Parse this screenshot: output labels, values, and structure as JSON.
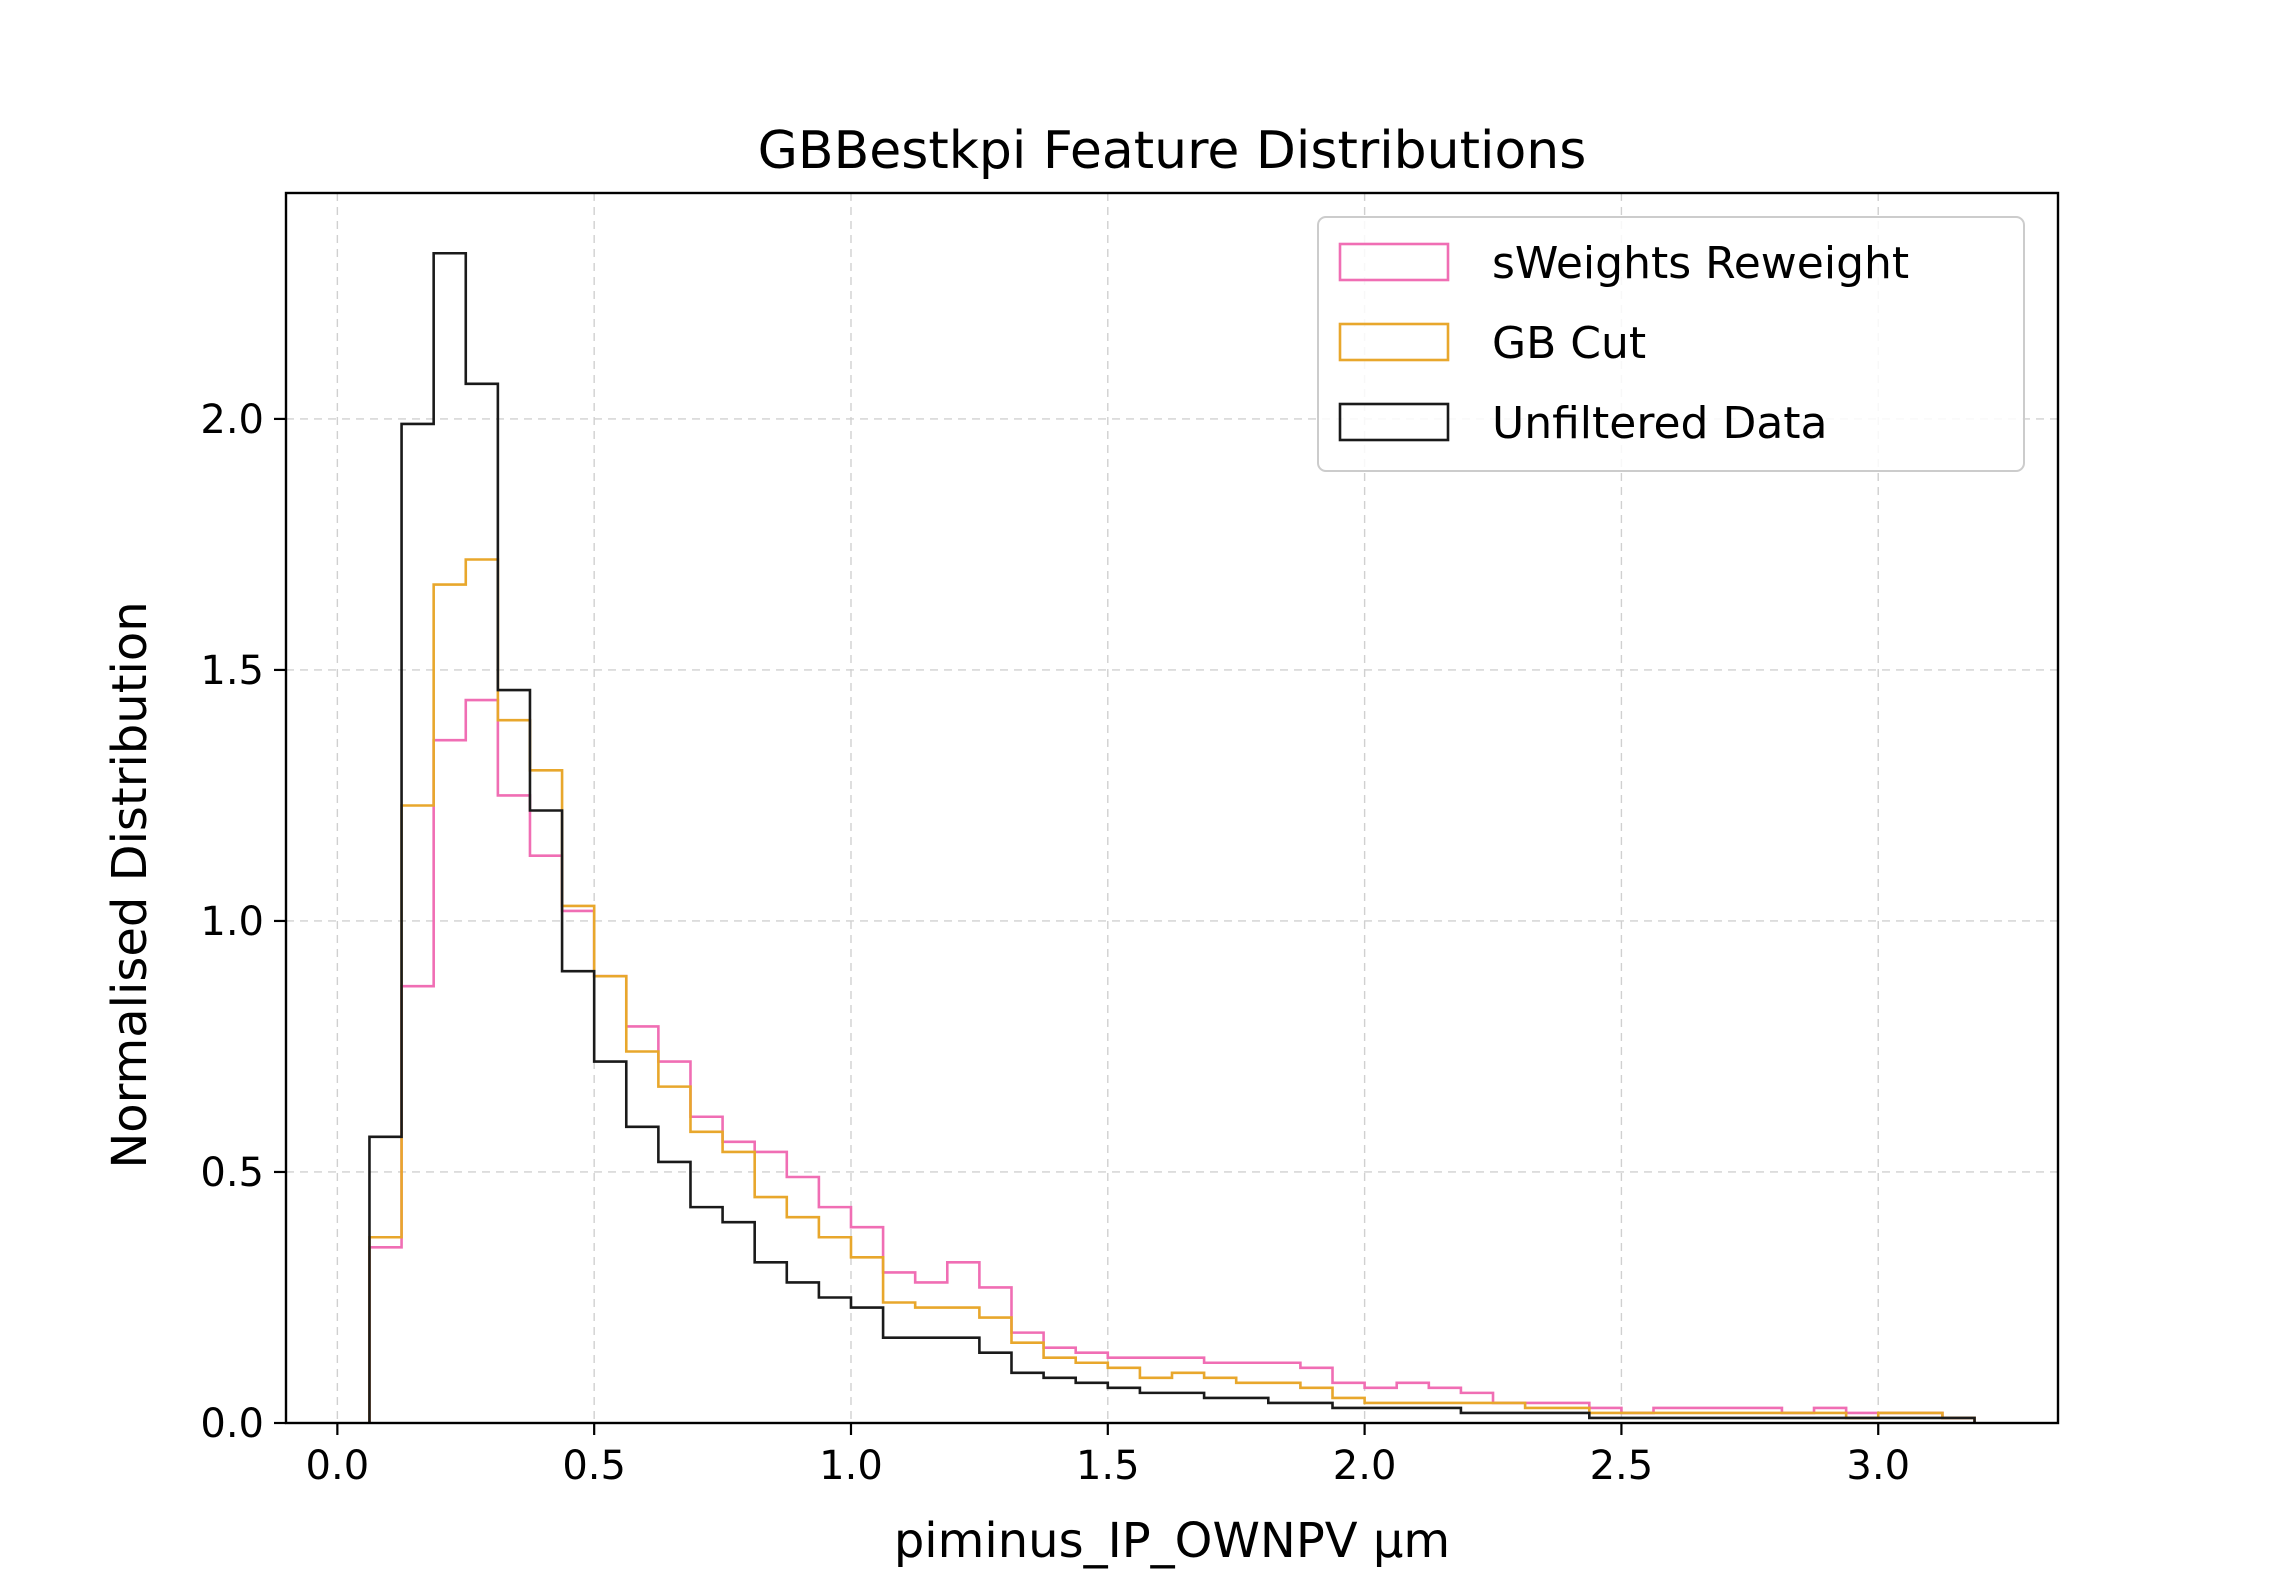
{
  "chart_data": {
    "type": "histogram-step",
    "title": "GBBestkpi Feature Distributions",
    "xlabel": "piminus_IP_OWNPV µm",
    "ylabel": "Normalised Distribution",
    "xlim": [
      -0.1,
      3.35
    ],
    "ylim": [
      0,
      2.45
    ],
    "xticks": [
      0.0,
      0.5,
      1.0,
      1.5,
      2.0,
      2.5,
      3.0
    ],
    "yticks": [
      0.0,
      0.5,
      1.0,
      1.5,
      2.0
    ],
    "xtick_labels": [
      "0.0",
      "0.5",
      "1.0",
      "1.5",
      "2.0",
      "2.5",
      "3.0"
    ],
    "ytick_labels": [
      "0.0",
      "0.5",
      "1.0",
      "1.5",
      "2.0"
    ],
    "grid": true,
    "legend_position": "top-right",
    "bin_edges": [
      0.0625,
      0.125,
      0.1875,
      0.25,
      0.3125,
      0.375,
      0.4375,
      0.5,
      0.5625,
      0.625,
      0.6875,
      0.75,
      0.8125,
      0.875,
      0.9375,
      1.0,
      1.0625,
      1.125,
      1.1875,
      1.25,
      1.3125,
      1.375,
      1.4375,
      1.5,
      1.5625,
      1.625,
      1.6875,
      1.75,
      1.8125,
      1.875,
      1.9375,
      2.0,
      2.0625,
      2.125,
      2.1875,
      2.25,
      2.3125,
      2.375,
      2.4375,
      2.5,
      2.5625,
      2.625,
      2.6875,
      2.75,
      2.8125,
      2.875,
      2.9375,
      3.0,
      3.0625,
      3.125,
      3.1875
    ],
    "series": [
      {
        "name": "sWeights Reweight",
        "color": "#f06eb4",
        "values": [
          0.35,
          0.87,
          1.36,
          1.44,
          1.25,
          1.13,
          1.02,
          0.89,
          0.79,
          0.72,
          0.61,
          0.56,
          0.54,
          0.49,
          0.43,
          0.39,
          0.3,
          0.28,
          0.32,
          0.27,
          0.18,
          0.15,
          0.14,
          0.13,
          0.13,
          0.13,
          0.12,
          0.12,
          0.12,
          0.11,
          0.08,
          0.07,
          0.08,
          0.07,
          0.06,
          0.04,
          0.04,
          0.04,
          0.03,
          0.02,
          0.03,
          0.03,
          0.03,
          0.03,
          0.02,
          0.03,
          0.02,
          0.02,
          0.02,
          0.01
        ]
      },
      {
        "name": "GB Cut",
        "color": "#e8a72c",
        "values": [
          0.37,
          1.23,
          1.67,
          1.72,
          1.4,
          1.3,
          1.03,
          0.89,
          0.74,
          0.67,
          0.58,
          0.54,
          0.45,
          0.41,
          0.37,
          0.33,
          0.24,
          0.23,
          0.23,
          0.21,
          0.16,
          0.13,
          0.12,
          0.11,
          0.09,
          0.1,
          0.09,
          0.08,
          0.08,
          0.07,
          0.05,
          0.04,
          0.04,
          0.04,
          0.04,
          0.04,
          0.03,
          0.03,
          0.02,
          0.02,
          0.02,
          0.02,
          0.02,
          0.02,
          0.02,
          0.02,
          0.01,
          0.02,
          0.02,
          0.01
        ]
      },
      {
        "name": "Unfiltered Data",
        "color": "#1a1a1a",
        "values": [
          0.57,
          1.99,
          2.33,
          2.07,
          1.46,
          1.22,
          0.9,
          0.72,
          0.59,
          0.52,
          0.43,
          0.4,
          0.32,
          0.28,
          0.25,
          0.23,
          0.17,
          0.17,
          0.17,
          0.14,
          0.1,
          0.09,
          0.08,
          0.07,
          0.06,
          0.06,
          0.05,
          0.05,
          0.04,
          0.04,
          0.03,
          0.03,
          0.03,
          0.03,
          0.02,
          0.02,
          0.02,
          0.02,
          0.01,
          0.01,
          0.01,
          0.01,
          0.01,
          0.01,
          0.01,
          0.01,
          0.01,
          0.01,
          0.01,
          0.01
        ]
      }
    ]
  }
}
